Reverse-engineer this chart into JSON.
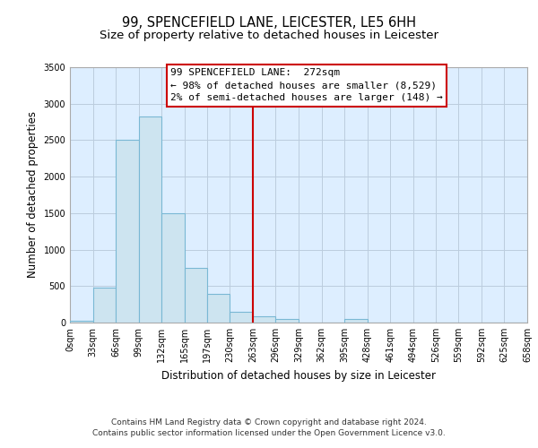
{
  "title": "99, SPENCEFIELD LANE, LEICESTER, LE5 6HH",
  "subtitle": "Size of property relative to detached houses in Leicester",
  "xlabel": "Distribution of detached houses by size in Leicester",
  "ylabel": "Number of detached properties",
  "bar_edges": [
    0,
    33,
    66,
    99,
    132,
    165,
    197,
    230,
    263,
    296,
    329,
    362,
    395,
    428,
    461,
    494,
    526,
    559,
    592,
    625,
    658
  ],
  "bar_heights": [
    20,
    480,
    2500,
    2820,
    1500,
    750,
    395,
    150,
    80,
    55,
    0,
    0,
    55,
    0,
    0,
    0,
    0,
    0,
    0,
    0
  ],
  "bar_color": "#cde4f0",
  "bar_edgecolor": "#7ab8d4",
  "plot_bg_color": "#ddeeff",
  "vline_x": 263,
  "vline_color": "#cc0000",
  "ylim": [
    0,
    3500
  ],
  "yticks": [
    0,
    500,
    1000,
    1500,
    2000,
    2500,
    3000,
    3500
  ],
  "xtick_labels": [
    "0sqm",
    "33sqm",
    "66sqm",
    "99sqm",
    "132sqm",
    "165sqm",
    "197sqm",
    "230sqm",
    "263sqm",
    "296sqm",
    "329sqm",
    "362sqm",
    "395sqm",
    "428sqm",
    "461sqm",
    "494sqm",
    "526sqm",
    "559sqm",
    "592sqm",
    "625sqm",
    "658sqm"
  ],
  "annotation_title": "99 SPENCEFIELD LANE:  272sqm",
  "annotation_line1": "← 98% of detached houses are smaller (8,529)",
  "annotation_line2": "2% of semi-detached houses are larger (148) →",
  "footer1": "Contains HM Land Registry data © Crown copyright and database right 2024.",
  "footer2": "Contains public sector information licensed under the Open Government Licence v3.0.",
  "background_color": "#ffffff",
  "grid_color": "#bbccdd",
  "title_fontsize": 10.5,
  "subtitle_fontsize": 9.5,
  "axis_label_fontsize": 8.5,
  "tick_fontsize": 7,
  "annotation_fontsize": 8,
  "footer_fontsize": 6.5
}
